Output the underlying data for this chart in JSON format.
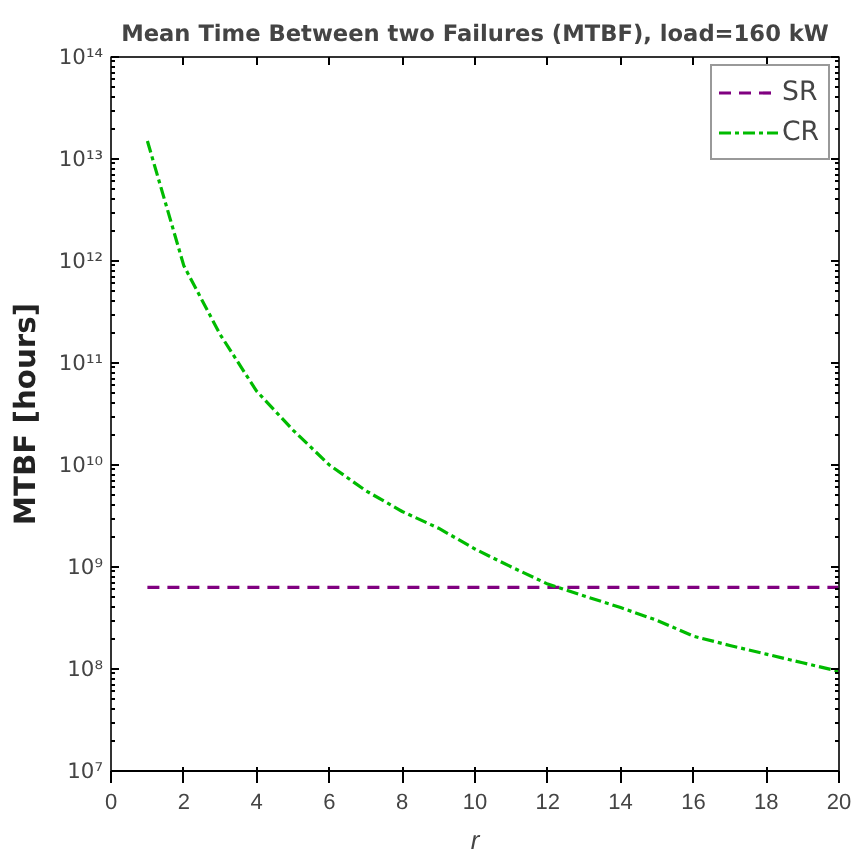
{
  "chart_data": {
    "type": "line",
    "title": "Mean Time Between two Failures (MTBF), load=160 kW",
    "xlabel": "r",
    "ylabel": "MTBF [hours]",
    "x": [
      1,
      2,
      3,
      4,
      5,
      6,
      7,
      8,
      9,
      10,
      11,
      12,
      13,
      14,
      15,
      16,
      17,
      18,
      19,
      20
    ],
    "series": [
      {
        "name": "SR",
        "color": "#800080",
        "line_style": "dashed",
        "values": [
          630000000.0,
          630000000.0,
          630000000.0,
          630000000.0,
          630000000.0,
          630000000.0,
          630000000.0,
          630000000.0,
          630000000.0,
          630000000.0,
          630000000.0,
          630000000.0,
          630000000.0,
          630000000.0,
          630000000.0,
          630000000.0,
          630000000.0,
          630000000.0,
          630000000.0,
          630000000.0
        ]
      },
      {
        "name": "CR",
        "color": "#00bb00",
        "line_style": "dashdot",
        "values": [
          15000000000000.0,
          900000000000.0,
          190000000000.0,
          53000000000.0,
          22000000000.0,
          10000000000.0,
          5600000000.0,
          3500000000.0,
          2400000000.0,
          1500000000.0,
          1000000000.0,
          680000000.0,
          520000000.0,
          400000000.0,
          300000000.0,
          210000000.0,
          170000000.0,
          140000000.0,
          115000000.0,
          95000000.0
        ]
      }
    ],
    "log": "y",
    "grid": false,
    "legend": "top right",
    "marker": "none",
    "xlim": [
      0,
      20
    ],
    "xticks": [
      0,
      2,
      4,
      6,
      8,
      10,
      12,
      14,
      16,
      18,
      20
    ],
    "ylim": [
      10000000.0,
      100000000000000.0
    ],
    "yticks": [
      {
        "value": 10000000.0,
        "label": "10⁷"
      },
      {
        "value": 100000000.0,
        "label": "10⁸"
      },
      {
        "value": 1000000000.0,
        "label": "10⁹"
      },
      {
        "value": 10000000000.0,
        "label": "10¹⁰"
      },
      {
        "value": 100000000000.0,
        "label": "10¹¹"
      },
      {
        "value": 1000000000000.0,
        "label": "10¹²"
      },
      {
        "value": 10000000000000.0,
        "label": "10¹³"
      },
      {
        "value": 100000000000000.0,
        "label": "10¹⁴"
      }
    ]
  }
}
